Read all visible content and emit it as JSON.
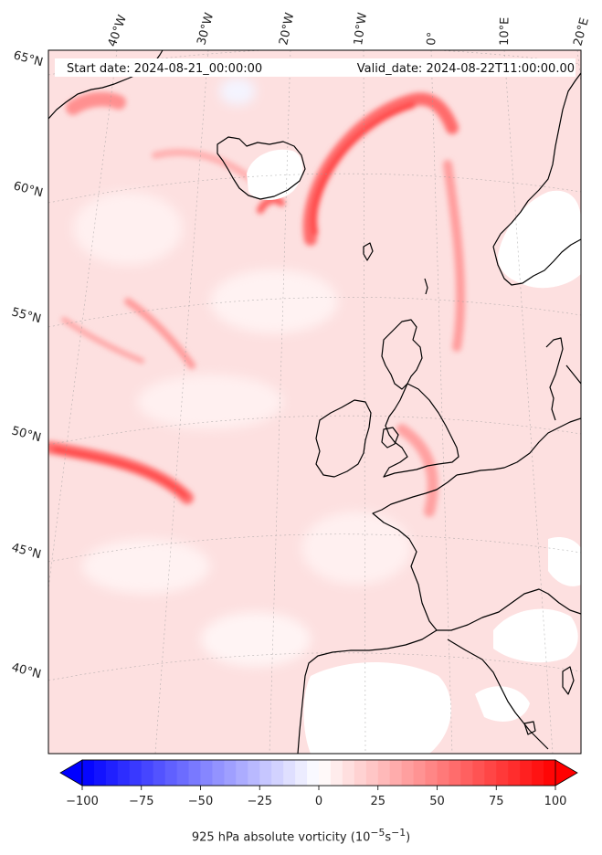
{
  "header": {
    "start_date": "Start date: 2024-08-21_00:00:00",
    "valid_date": "Valid_date: 2024-08-22T11:00:00.00"
  },
  "map": {
    "field": "925 hPa absolute vorticity",
    "longitude_labels": [
      "40°W",
      "30°W",
      "20°W",
      "10°W",
      "0°",
      "10°E",
      "20°E"
    ],
    "latitude_labels": [
      "65°N",
      "60°N",
      "55°N",
      "50°N",
      "45°N",
      "40°N"
    ],
    "colors": {
      "positive": "#ff0000",
      "negative": "#0000ff",
      "coast": "#000000",
      "land_mask": "#ffffff"
    }
  },
  "colorbar": {
    "label_prefix": "925 hPa absolute vorticity (10",
    "label_exp1": "−5",
    "label_mid": "s",
    "label_exp2": "−1",
    "label_suffix": ")",
    "min": -100,
    "max": 100,
    "ticks": [
      "−100",
      "−75",
      "−50",
      "−25",
      "0",
      "25",
      "50",
      "75",
      "100"
    ],
    "extend": "both",
    "colormap": "bwr"
  }
}
